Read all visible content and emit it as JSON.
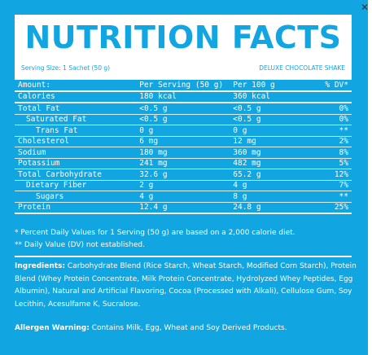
{
  "header": {
    "title": "NUTRITION FACTS",
    "serving_size": "Serving Size: 1 Sachet (50 g)",
    "product_name": "DELUXE CHOCOLATE SHAKE"
  },
  "table": {
    "columns": [
      "Amount:",
      "Per Serving (50 g)",
      "Per 100 g",
      "% DV*"
    ],
    "rows": [
      [
        "Calories",
        "180 kcal",
        "360 kcal",
        ""
      ],
      [
        "Total Fat",
        "<0.5 g",
        "<0.5 g",
        "0%"
      ],
      [
        "Saturated Fat",
        "<0.5 g",
        "<0.5 g",
        "0%"
      ],
      [
        "Trans Fat",
        "0 g",
        "0 g",
        "**"
      ],
      [
        "Cholesterol",
        "6 mg",
        "12 mg",
        "2%"
      ],
      [
        "Sodium",
        "180 mg",
        "360 mg",
        "8%"
      ],
      [
        "Potassium",
        "241 mg",
        "482 mg",
        "5%"
      ],
      [
        "Total Carbohydrate",
        "32.6 g",
        "65.2 g",
        "12%"
      ],
      [
        "Dietary Fiber",
        "2 g",
        "4 g",
        "7%"
      ],
      [
        "Sugars",
        "4 g",
        "8 g",
        "**"
      ],
      [
        "Protein",
        "12.4 g",
        "24.8 g",
        "25%"
      ]
    ]
  },
  "footnotes": {
    "dv_note": "* Percent Daily Values for 1 Serving (50 g) are based on a 2,000 calorie diet.",
    "dv_not_established": "** Daily Value (DV) not established."
  },
  "ingredients": {
    "label": "Ingredients:",
    "text": " Carbohydrate Blend (Rice Starch, Wheat Starch, Modified Corn Starch), Protein Blend (Whey Protein Concentrate, Milk Protein Concentrate, Hydrolyzed Whey Peptides, Egg Albumin), Natural and Artificial Flavoring, Cocoa (Processed with Alkali), Cellulose Gum, Soy Lecithin, Acesulfame K, Sucralose."
  },
  "allergen": {
    "label": "Allergen Warning:",
    "text": " Contains Milk, Egg, Wheat and Soy Derived Products."
  },
  "colors": {
    "brand_blue": "#11a6e1",
    "text_white": "#ffffff"
  },
  "icons": {
    "close": "close-icon"
  }
}
